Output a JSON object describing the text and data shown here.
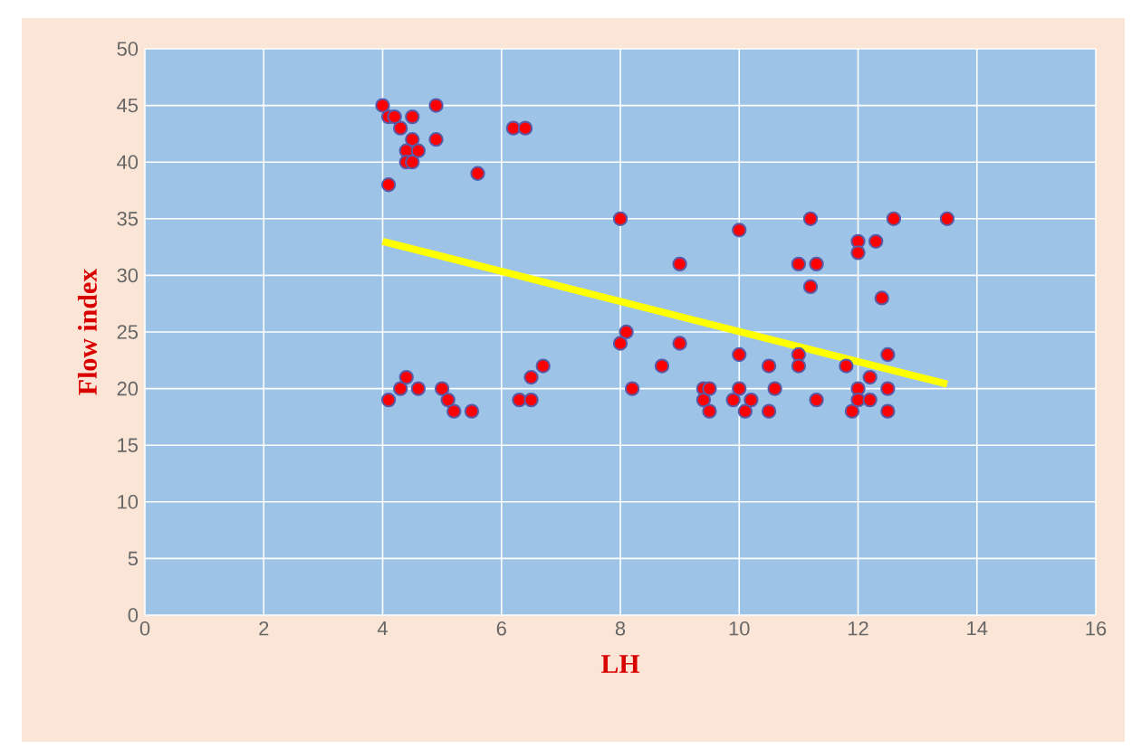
{
  "chart_data": {
    "type": "scatter",
    "xlabel": "LH",
    "ylabel": "Flow index",
    "xlim": [
      0,
      16
    ],
    "ylim": [
      0,
      50
    ],
    "xticks": [
      0,
      2,
      4,
      6,
      8,
      10,
      12,
      14,
      16
    ],
    "yticks": [
      0,
      5,
      10,
      15,
      20,
      25,
      30,
      35,
      40,
      45,
      50
    ],
    "grid": true,
    "marker": "circle",
    "series": [
      {
        "color": "#ff0000",
        "x": [
          4.0,
          4.1,
          4.2,
          4.3,
          4.5,
          4.9,
          4.5,
          4.4,
          4.6,
          4.4,
          4.5,
          4.9,
          4.1,
          5.6,
          6.2,
          6.4,
          8.0,
          10.0,
          11.2,
          11.0,
          11.3,
          11.2,
          12.0,
          12.0,
          12.3,
          12.6,
          13.5,
          12.4,
          9.0,
          4.1,
          4.3,
          4.4,
          4.6,
          5.0,
          5.1,
          5.2,
          5.5,
          6.3,
          6.5,
          6.5,
          6.7,
          8.0,
          8.1,
          8.2,
          8.7,
          9.0,
          9.4,
          9.4,
          9.5,
          9.5,
          9.9,
          10.0,
          10.0,
          10.1,
          10.2,
          10.5,
          10.5,
          10.6,
          11.0,
          11.0,
          11.3,
          11.8,
          11.9,
          12.0,
          12.0,
          12.2,
          12.2,
          12.5,
          12.5,
          12.5
        ],
        "values": [
          45,
          44,
          44,
          43,
          44,
          45,
          42,
          41,
          41,
          40,
          40,
          42,
          38,
          39,
          43,
          43,
          35,
          34,
          35,
          31,
          31,
          29,
          33,
          32,
          33,
          35,
          35,
          28,
          31,
          19,
          20,
          21,
          20,
          20,
          19,
          18,
          18,
          19,
          19,
          21,
          22,
          24,
          25,
          20,
          22,
          24,
          20,
          19,
          20,
          18,
          19,
          20,
          23,
          18,
          19,
          22,
          18,
          20,
          23,
          22,
          19,
          22,
          18,
          20,
          19,
          21,
          19,
          23,
          20,
          18
        ]
      },
      {
        "type": "line",
        "color": "#ffff00",
        "marker": "none",
        "x": [
          4,
          13.5
        ],
        "values": [
          33,
          20.4
        ]
      }
    ]
  }
}
